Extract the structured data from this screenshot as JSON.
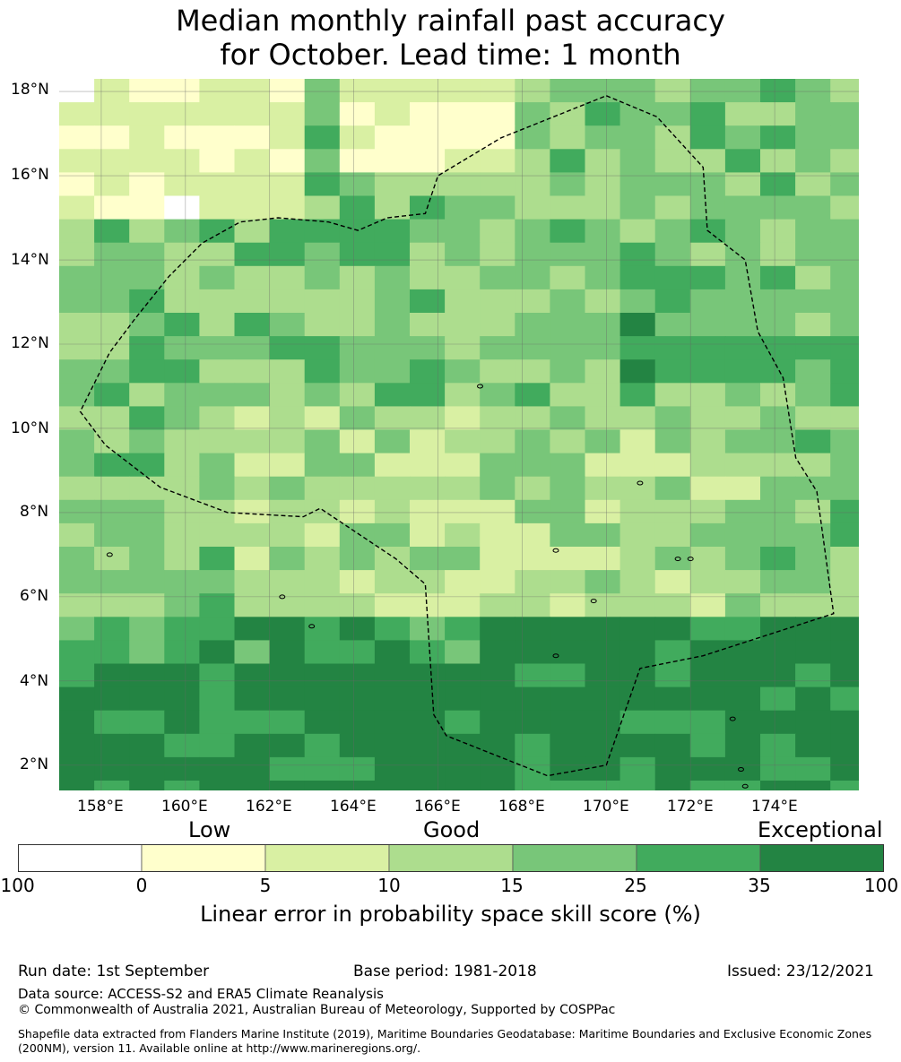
{
  "title_line1": "Median monthly rainfall past accuracy",
  "title_line2": "for October. Lead time: 1 month",
  "map": {
    "lon_range": [
      157,
      176
    ],
    "lat_range": [
      1.4,
      18.3
    ],
    "lon_ticks": [
      "158°E",
      "160°E",
      "162°E",
      "164°E",
      "166°E",
      "168°E",
      "170°E",
      "172°E",
      "174°E"
    ],
    "lon_tick_values": [
      158,
      160,
      162,
      164,
      166,
      168,
      170,
      172,
      174
    ],
    "lat_ticks": [
      "18°N",
      "16°N",
      "14°N",
      "12°N",
      "10°N",
      "8°N",
      "6°N",
      "4°N",
      "2°N"
    ],
    "lat_tick_values": [
      18,
      16,
      14,
      12,
      10,
      8,
      6,
      4,
      2
    ],
    "grid": true,
    "eez_boundary": [
      [
        170,
        17.9
      ],
      [
        171.2,
        17.4
      ],
      [
        172.3,
        16.2
      ],
      [
        172.4,
        14.7
      ],
      [
        173.3,
        14.0
      ],
      [
        173.6,
        12.3
      ],
      [
        174.2,
        11.2
      ],
      [
        174.5,
        9.3
      ],
      [
        175.0,
        8.5
      ],
      [
        175.4,
        5.6
      ],
      [
        172.3,
        4.6
      ],
      [
        170.8,
        4.3
      ],
      [
        170.0,
        2.0
      ],
      [
        168.6,
        1.75
      ],
      [
        166.2,
        2.7
      ],
      [
        165.9,
        3.2
      ],
      [
        165.7,
        6.3
      ],
      [
        165.0,
        6.9
      ],
      [
        163.2,
        8.1
      ],
      [
        162.8,
        7.9
      ],
      [
        161.0,
        8.0
      ],
      [
        159.4,
        8.6
      ],
      [
        158.1,
        9.6
      ],
      [
        157.5,
        10.4
      ],
      [
        158.2,
        11.8
      ],
      [
        158.8,
        12.6
      ],
      [
        159.6,
        13.6
      ],
      [
        160.4,
        14.4
      ],
      [
        161.3,
        14.9
      ],
      [
        162.2,
        15.0
      ],
      [
        163.4,
        14.9
      ],
      [
        164.1,
        14.7
      ],
      [
        164.8,
        15.0
      ],
      [
        165.7,
        15.1
      ],
      [
        166.0,
        16.0
      ],
      [
        167.5,
        16.9
      ],
      [
        170,
        17.9
      ]
    ]
  },
  "colorbar": {
    "category_labels": [
      "Low",
      "Good",
      "Exceptional"
    ],
    "tick_labels": [
      "-100",
      "0",
      "5",
      "10",
      "15",
      "25",
      "35",
      "100"
    ],
    "colors": [
      "#ffffff",
      "#ffffcc",
      "#d9f0a3",
      "#addd8e",
      "#78c679",
      "#41ab5d",
      "#238443"
    ],
    "xlabel": "Linear error in probability space skill score (%)"
  },
  "footer": {
    "run_date": "Run date: 1st September",
    "base_period": "Base period: 1981-2018",
    "issued": "Issued: 23/12/2021",
    "data_source": "Data source: ACCESS-S2 and ERA5 Climate Reanalysis",
    "copyright": "© Commonwealth of Australia 2021, Australian Bureau of Meteorology, Supported by COSPPac",
    "shapefile": "Shapefile data extracted from Flanders Marine Institute (2019), Maritime Boundaries Geodatabase: Maritime Boundaries and Exclusive Economic Zones (200NM), version 11. Available online at http://www.marineregions.org/."
  }
}
